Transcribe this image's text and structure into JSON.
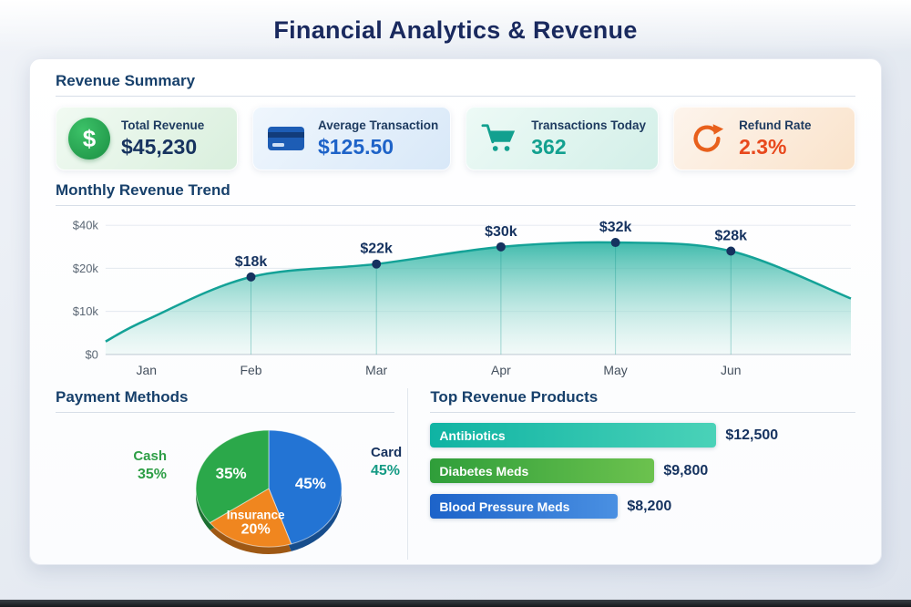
{
  "page": {
    "title": "Financial Analytics & Revenue"
  },
  "sections": {
    "revenue_summary": {
      "title": "Revenue Summary",
      "cards": [
        {
          "label": "Total Revenue",
          "value": "$45,230",
          "icon": "dollar-icon",
          "icon_glyph": "$",
          "accent": "#1f9d4e",
          "value_color": "#17335f"
        },
        {
          "label": "Average Transaction",
          "value": "$125.50",
          "icon": "credit-card-icon",
          "accent": "#1e63c8",
          "value_color": "#1e63c8"
        },
        {
          "label": "Transactions Today",
          "value": "362",
          "icon": "shopping-cart-icon",
          "accent": "#12a08f",
          "value_color": "#12a08f"
        },
        {
          "label": "Refund Rate",
          "value": "2.3%",
          "icon": "refresh-icon",
          "accent": "#e8551c",
          "value_color": "#e8481c"
        }
      ]
    }
  },
  "chart_data": [
    {
      "type": "area",
      "title": "Monthly Revenue Trend",
      "categories": [
        "Jan",
        "Feb",
        "Mar",
        "Apr",
        "May",
        "Jun"
      ],
      "values_k": [
        8,
        18,
        22,
        30,
        32,
        28
      ],
      "point_labels": [
        "",
        "$18k",
        "$22k",
        "$30k",
        "$32k",
        "$28k"
      ],
      "yticks": [
        {
          "label": "$40k",
          "value": 40
        },
        {
          "label": "$20k",
          "value": 20
        },
        {
          "label": "$10k",
          "value": 10
        },
        {
          "label": "$0",
          "value": 0
        }
      ],
      "ylim": [
        0,
        40
      ],
      "grid": true,
      "line_color": "#14a297",
      "fill_from": "#2bb3a3",
      "fill_to": "#ddf3ee",
      "dot_color": "#16325f"
    },
    {
      "type": "pie",
      "title": "Payment Methods",
      "start_angle_deg": -90,
      "direction": "clockwise",
      "slices": [
        {
          "label": "Card",
          "pct": 45,
          "pct_label": "45%",
          "color": "#2374d4",
          "show_name_inside": false
        },
        {
          "label": "Insurance",
          "pct": 20,
          "pct_label": "20%",
          "color": "#f0861f",
          "show_name_inside": true
        },
        {
          "label": "Cash",
          "pct": 35,
          "pct_label": "35%",
          "color": "#2ba84a",
          "show_name_inside": false
        }
      ],
      "outer_labels": {
        "left": {
          "name": "Cash",
          "pct": "35%",
          "color": "#2e9e46"
        },
        "right": {
          "name": "Card",
          "pct": "45%",
          "name_color": "#17335f",
          "pct_color": "#149a84"
        }
      }
    },
    {
      "type": "bar",
      "title": "Top Revenue Products",
      "categories": [
        "Antibiotics",
        "Diabetes Meds",
        "Blood Pressure Meds"
      ],
      "values": [
        12500,
        9800,
        8200
      ],
      "value_labels": [
        "$12,500",
        "$9,800",
        "$8,200"
      ],
      "bar_colors": [
        [
          "#0fb3a3",
          "#4ad2b8"
        ],
        [
          "#2f9e3a",
          "#6cc24e"
        ],
        [
          "#1d63c9",
          "#4a90e2"
        ]
      ]
    }
  ]
}
